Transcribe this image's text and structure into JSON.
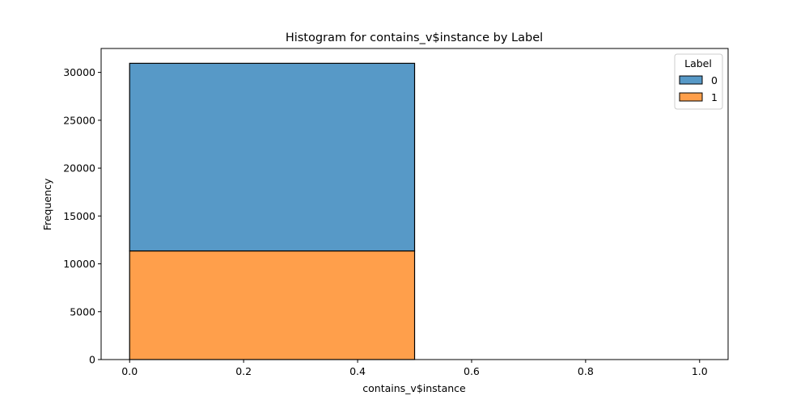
{
  "chart_data": {
    "type": "bar",
    "stacked": true,
    "title": "Histogram for contains_v$instance by Label",
    "xlabel": "contains_v$instance",
    "ylabel": "Frequency",
    "xlim": [
      -0.05,
      1.05
    ],
    "ylim": [
      0,
      32500
    ],
    "xticks": [
      0.0,
      0.2,
      0.4,
      0.6,
      0.8,
      1.0
    ],
    "xtick_labels": [
      "0.0",
      "0.2",
      "0.4",
      "0.6",
      "0.8",
      "1.0"
    ],
    "yticks": [
      0,
      5000,
      10000,
      15000,
      20000,
      25000,
      30000
    ],
    "ytick_labels": [
      "0",
      "5000",
      "10000",
      "15000",
      "20000",
      "25000",
      "30000"
    ],
    "bins": [
      [
        0.0,
        0.5
      ],
      [
        0.5,
        1.0
      ]
    ],
    "series": [
      {
        "name": "1",
        "color": "#ff9f4b",
        "values": [
          11350,
          0
        ]
      },
      {
        "name": "0",
        "color": "#5799c7",
        "values": [
          19600,
          0
        ]
      }
    ],
    "legend": {
      "title": "Label",
      "placement": "top-right",
      "entries": [
        {
          "label": "0",
          "color": "#5799c7"
        },
        {
          "label": "1",
          "color": "#ff9f4b"
        }
      ]
    },
    "grid": false
  }
}
